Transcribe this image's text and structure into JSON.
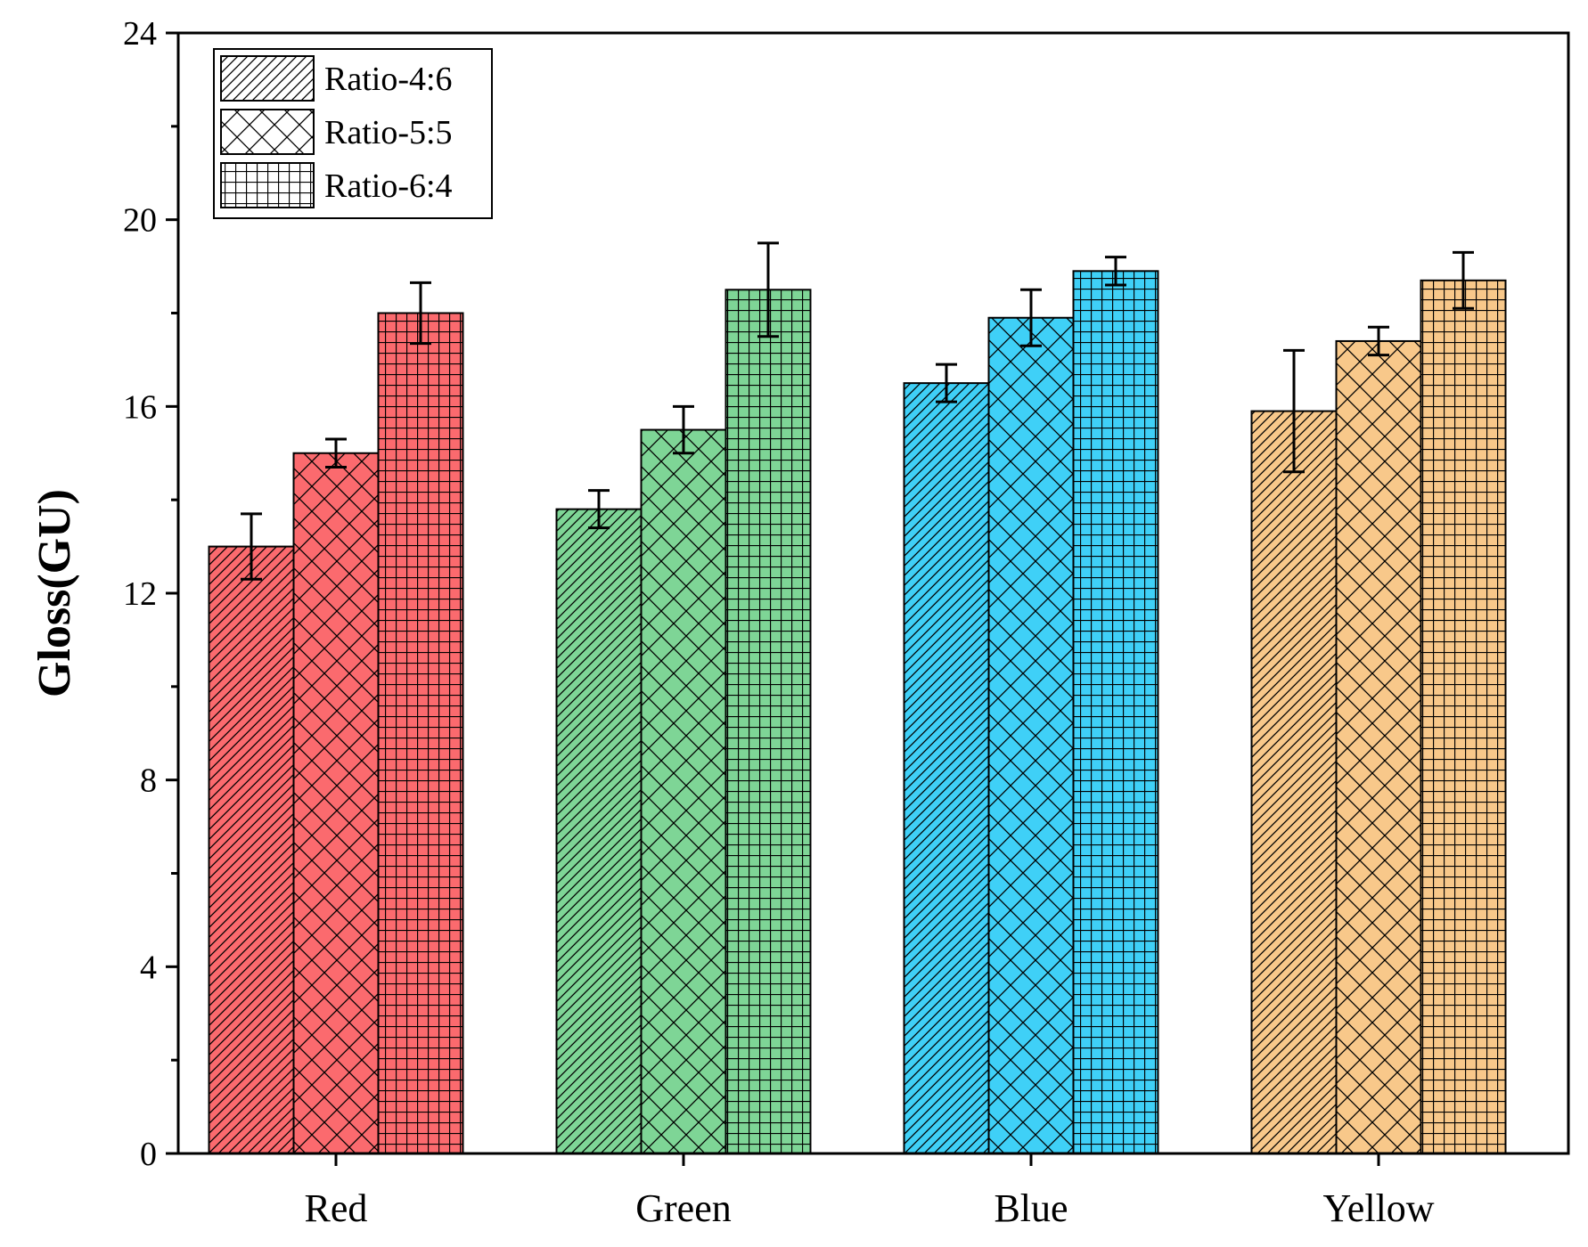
{
  "chart_data": {
    "type": "bar",
    "title": "",
    "xlabel": "",
    "ylabel": "Gloss(GU)",
    "ylim": [
      0,
      24
    ],
    "yticks": [
      "0",
      "4",
      "8",
      "12",
      "16",
      "20",
      "24"
    ],
    "categories": [
      "Red",
      "Green",
      "Blue",
      "Yellow"
    ],
    "category_colors": [
      "#fb6a6e",
      "#7ed596",
      "#3fd0f7",
      "#f8c88a"
    ],
    "legend_position": "top-left",
    "series": [
      {
        "name": "Ratio-4:6",
        "pattern": "diagonal",
        "values": [
          13.0,
          13.8,
          16.5,
          15.9
        ],
        "errors": [
          0.7,
          0.4,
          0.4,
          1.3
        ]
      },
      {
        "name": "Ratio-5:5",
        "pattern": "crosshatch",
        "values": [
          15.0,
          15.5,
          17.9,
          17.4
        ],
        "errors": [
          0.3,
          0.5,
          0.6,
          0.3
        ]
      },
      {
        "name": "Ratio-6:4",
        "pattern": "grid",
        "values": [
          18.0,
          18.5,
          18.9,
          18.7
        ],
        "errors": [
          0.65,
          1.0,
          0.3,
          0.6
        ]
      }
    ]
  }
}
